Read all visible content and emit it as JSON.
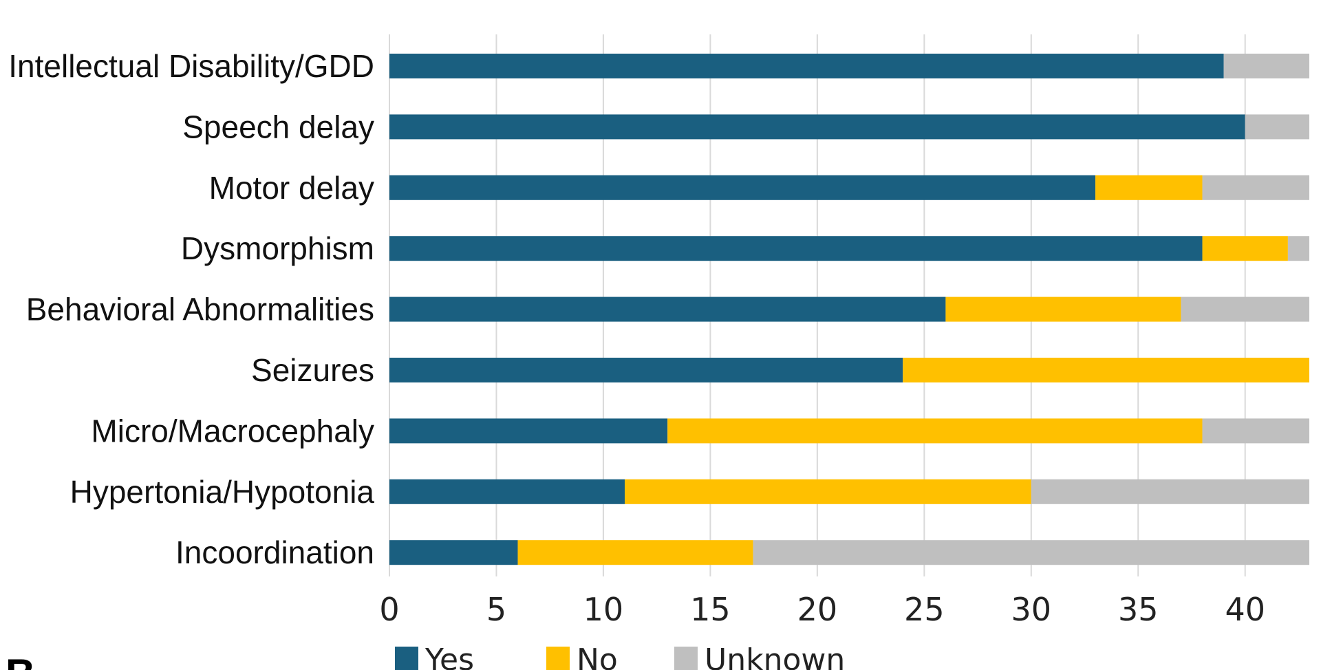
{
  "chart_data": {
    "type": "bar",
    "orientation": "horizontal",
    "stacked": true,
    "title": "",
    "xlabel": "",
    "ylabel": "",
    "xlim": [
      0,
      43
    ],
    "xticks": [
      0,
      5,
      10,
      15,
      20,
      25,
      30,
      35,
      40
    ],
    "grid": true,
    "legend_position": "bottom",
    "panel_letter": "B",
    "categories": [
      "Intellectual Disability/GDD",
      "Speech delay",
      "Motor delay",
      "Dysmorphism",
      "Behavioral Abnormalities",
      "Seizures",
      "Micro/Macrocephaly",
      "Hypertonia/Hypotonia",
      "Incoordination"
    ],
    "series": [
      {
        "name": "Yes",
        "color": "#1a5f80",
        "values": [
          39,
          40,
          33,
          38,
          26,
          24,
          13,
          11,
          6
        ]
      },
      {
        "name": "No",
        "color": "#ffc000",
        "values": [
          0,
          0,
          5,
          4,
          11,
          19,
          25,
          19,
          11
        ]
      },
      {
        "name": "Unknown",
        "color": "#bfbfbf",
        "values": [
          4,
          3,
          5,
          1,
          6,
          0,
          5,
          13,
          26
        ]
      }
    ]
  }
}
